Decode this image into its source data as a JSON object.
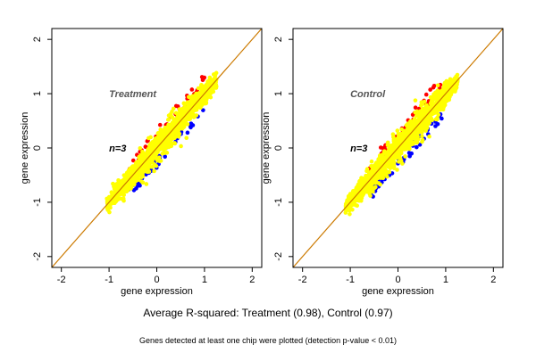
{
  "chart_data": [
    {
      "type": "scatter",
      "label": "Treatment",
      "annotation": "n=3",
      "xlabel": "gene expression",
      "ylabel": "gene expression",
      "xlim": [
        -2.2,
        2.2
      ],
      "ylim": [
        -2.2,
        2.2
      ],
      "xticks": [
        -2,
        -1,
        0,
        1,
        2
      ],
      "yticks": [
        -2,
        -1,
        0,
        1,
        2
      ],
      "grid": false,
      "reference_line": {
        "slope": 1,
        "intercept": 0,
        "color": "#cc7a00"
      },
      "point_colors": {
        "main": "#ffff00",
        "upper": "#ff0000",
        "lower": "#0000ff",
        "edge": "#000000"
      },
      "cloud": {
        "x_range": [
          -1.05,
          1.25
        ],
        "spread": 0.12,
        "outlier_spread": 0.25
      }
    },
    {
      "type": "scatter",
      "label": "Control",
      "annotation": "n=3",
      "xlabel": "gene expression",
      "ylabel": "gene expression",
      "xlim": [
        -2.2,
        2.2
      ],
      "ylim": [
        -2.2,
        2.2
      ],
      "xticks": [
        -2,
        -1,
        0,
        1,
        2
      ],
      "yticks": [
        -2,
        -1,
        0,
        1,
        2
      ],
      "grid": false,
      "reference_line": {
        "slope": 1,
        "intercept": 0,
        "color": "#cc7a00"
      },
      "point_colors": {
        "main": "#ffff00",
        "upper": "#ff0000",
        "lower": "#0000ff",
        "edge": "#000000"
      },
      "cloud": {
        "x_range": [
          -1.1,
          1.25
        ],
        "spread": 0.13,
        "outlier_spread": 0.28
      }
    }
  ],
  "summary": "Average R-squared: Treatment (0.98), Control (0.97)",
  "footnote": "Genes detected at least one chip were plotted (detection p-value < 0.01)"
}
